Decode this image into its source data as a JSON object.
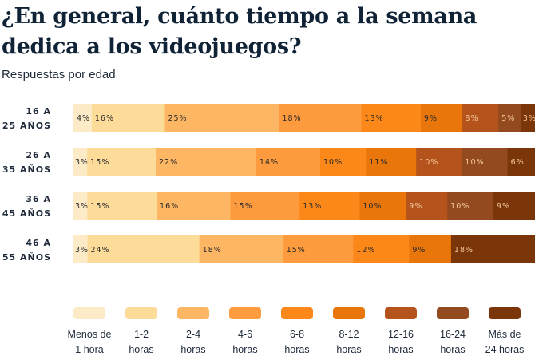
{
  "title": "¿En general, cuánto tiempo a la semana dedica a los videojuegos?",
  "subtitle": "Respuestas por edad",
  "chart_data": {
    "type": "bar",
    "orientation": "horizontal",
    "stacked": true,
    "normalized": true,
    "title": "¿En general, cuánto tiempo a la semana dedica a los videojuegos?",
    "subtitle": "Respuestas por edad",
    "categories": [
      [
        "16 A",
        "25 AÑOS"
      ],
      [
        "26 A",
        "35 AÑOS"
      ],
      [
        "36 A",
        "45 AÑOS"
      ],
      [
        "46 A",
        "55 AÑOS"
      ]
    ],
    "legend_position": "bottom",
    "series": [
      {
        "name": [
          "Menos de",
          "1 hora"
        ],
        "color": "#fdebc8",
        "values": [
          4,
          3,
          3,
          3
        ]
      },
      {
        "name": [
          "1-2",
          "horas"
        ],
        "color": "#fddc9a",
        "values": [
          16,
          15,
          15,
          24
        ]
      },
      {
        "name": [
          "2-4",
          "horas"
        ],
        "color": "#fdb663",
        "values": [
          25,
          22,
          16,
          18
        ]
      },
      {
        "name": [
          "4-6",
          "horas"
        ],
        "color": "#fd9b3e",
        "values": [
          18,
          14,
          15,
          15
        ]
      },
      {
        "name": [
          "6-8",
          "horas"
        ],
        "color": "#fb8818",
        "values": [
          13,
          10,
          13,
          12
        ]
      },
      {
        "name": [
          "8-12",
          "horas"
        ],
        "color": "#e8760a",
        "values": [
          9,
          11,
          10,
          9
        ]
      },
      {
        "name": [
          "12-16",
          "horas"
        ],
        "color": "#b5531c",
        "values": [
          8,
          10,
          9,
          0
        ]
      },
      {
        "name": [
          "16-24",
          "horas"
        ],
        "color": "#934a1f",
        "values": [
          5,
          10,
          10,
          0
        ]
      },
      {
        "name": [
          "Más de",
          "24 horas"
        ],
        "color": "#7a3508",
        "values": [
          3,
          6,
          9,
          18
        ]
      }
    ]
  }
}
